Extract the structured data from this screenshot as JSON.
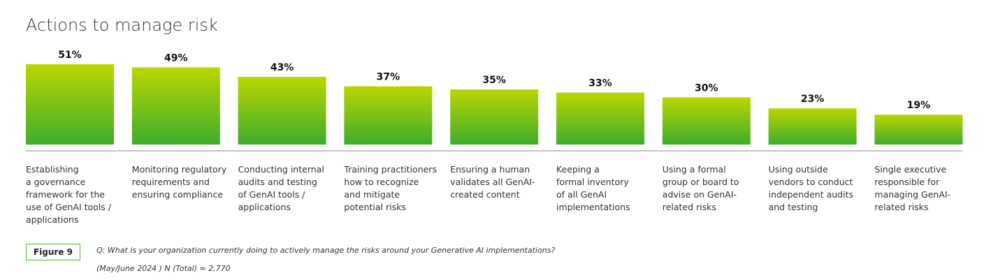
{
  "chart_data": {
    "type": "bar",
    "title": "Actions to manage risk",
    "categories": [
      "Establishing\na governance\nframework for the\nuse of GenAI tools /\napplications",
      "Monitoring regulatory\nrequirements and\nensuring compliance",
      "Conducting internal\naudits and testing\nof GenAI tools /\napplications",
      "Training practitioners\nhow to recognize\nand mitigate\npotential risks",
      "Ensuring a human\nvalidates all GenAI-\ncreated content",
      "Keeping a\nformal inventory\nof all GenAI\nimplementations",
      "Using a formal\ngroup or board to\nadvise on GenAI-\nrelated risks",
      "Using outside\nvendors to conduct\nindependent audits\nand testing",
      "Single executive\nresponsible for\nmanaging GenAI-\nrelated risks"
    ],
    "values": [
      51,
      49,
      43,
      37,
      35,
      33,
      30,
      23,
      19
    ],
    "value_labels": [
      "51%",
      "49%",
      "43%",
      "37%",
      "35%",
      "33%",
      "30%",
      "23%",
      "19%"
    ],
    "gradient": [
      "#bcd600",
      "#3dad2c"
    ],
    "figure_label": "Figure 9",
    "question": "Q: What is your organization currently doing to actively manage the risks around your Generative AI implementations?",
    "note": "(May/June 2024 ) N (Total) = 2,770"
  }
}
